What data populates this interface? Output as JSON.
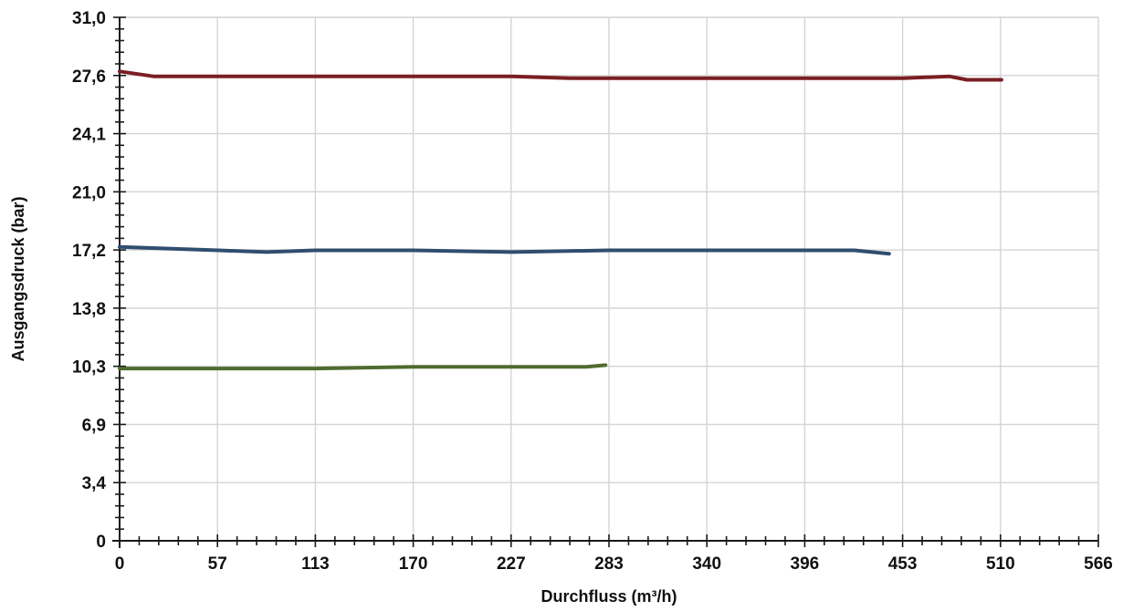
{
  "chart_data": {
    "type": "line",
    "title": "",
    "xlabel": "Durchfluss (m³/h)",
    "ylabel": "Ausgangsdruck (bar)",
    "xlim": [
      0,
      566
    ],
    "ylim": [
      0,
      31.0
    ],
    "x_ticks": [
      "0",
      "57",
      "113",
      "170",
      "227",
      "283",
      "340",
      "396",
      "453",
      "510",
      "566"
    ],
    "y_ticks": [
      "0",
      "3,4",
      "6,9",
      "10,3",
      "13,8",
      "17,2",
      "21,0",
      "24,1",
      "27,6",
      "31,0"
    ],
    "grid": true,
    "series": [
      {
        "color": "#7a1f24",
        "x": [
          0,
          20,
          57,
          113,
          170,
          227,
          260,
          283,
          340,
          396,
          453,
          480,
          490,
          510
        ],
        "y": [
          27.8,
          27.5,
          27.5,
          27.5,
          27.5,
          27.5,
          27.4,
          27.4,
          27.4,
          27.4,
          27.4,
          27.5,
          27.3,
          27.3
        ]
      },
      {
        "color": "#2f4e6f",
        "x": [
          0,
          57,
          85,
          113,
          170,
          227,
          283,
          340,
          396,
          425,
          445
        ],
        "y": [
          17.4,
          17.2,
          17.1,
          17.2,
          17.2,
          17.1,
          17.2,
          17.2,
          17.2,
          17.2,
          17.0
        ]
      },
      {
        "color": "#4f6b2f",
        "x": [
          0,
          57,
          113,
          170,
          200,
          227,
          255,
          270,
          281
        ],
        "y": [
          10.2,
          10.2,
          10.2,
          10.3,
          10.3,
          10.3,
          10.3,
          10.3,
          10.4
        ]
      }
    ]
  }
}
